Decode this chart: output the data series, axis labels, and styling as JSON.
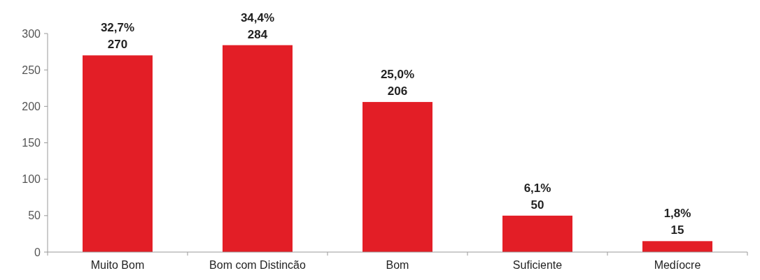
{
  "chart_data": {
    "type": "bar",
    "categories": [
      "Muito Bom",
      "Bom com Distincão",
      "Bom",
      "Suficiente",
      "Medíocre"
    ],
    "values": [
      270,
      284,
      206,
      50,
      15
    ],
    "color": "#e31e26",
    "ylim": [
      0,
      300
    ],
    "yticks": [
      0,
      50,
      100,
      150,
      200,
      250,
      300
    ],
    "data_labels": true,
    "annotations": [
      {
        "text": "32,7%",
        "x": "Muito Bom",
        "y": 270
      },
      {
        "text": "34,4%",
        "x": "Bom com Distincão",
        "y": 284
      },
      {
        "text": "25,0%",
        "x": "Bom",
        "y": 206
      },
      {
        "text": "6,1%",
        "x": "Suficiente",
        "y": 50
      },
      {
        "text": "1,8%",
        "x": "Medíocre",
        "y": 15
      }
    ]
  }
}
